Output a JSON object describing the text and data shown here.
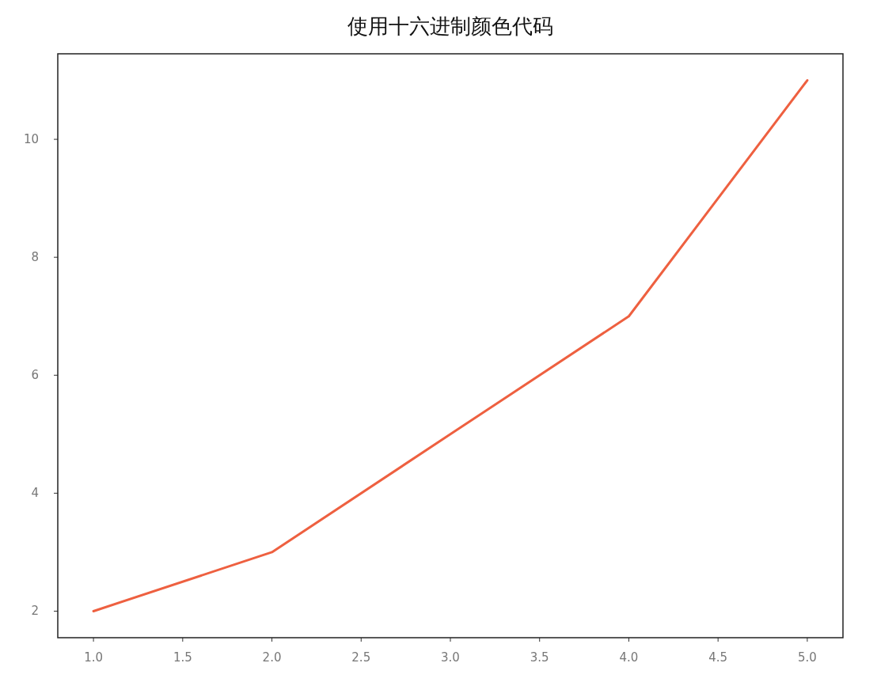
{
  "chart_data": {
    "type": "line",
    "title": "使用十六进制颜色代码",
    "x": [
      1,
      2,
      3,
      4,
      5
    ],
    "series": [
      {
        "color": "#ee6040",
        "values": [
          2,
          3,
          5,
          7,
          11
        ]
      }
    ],
    "xlim": [
      0.8,
      5.2
    ],
    "xticks": [
      {
        "value": 1,
        "label": "1.0"
      },
      {
        "value": 1.5,
        "label": "1.5"
      },
      {
        "value": 2,
        "label": "2.0"
      },
      {
        "value": 2.5,
        "label": "2.5"
      },
      {
        "value": 3,
        "label": "3.0"
      },
      {
        "value": 3.5,
        "label": "3.5"
      },
      {
        "value": 4,
        "label": "4.0"
      },
      {
        "value": 4.5,
        "label": "4.5"
      },
      {
        "value": 5,
        "label": "5.0"
      }
    ],
    "ylim": [
      1.55,
      11.45
    ],
    "yticks": [
      2,
      4,
      6,
      8,
      10
    ],
    "grid": false
  }
}
